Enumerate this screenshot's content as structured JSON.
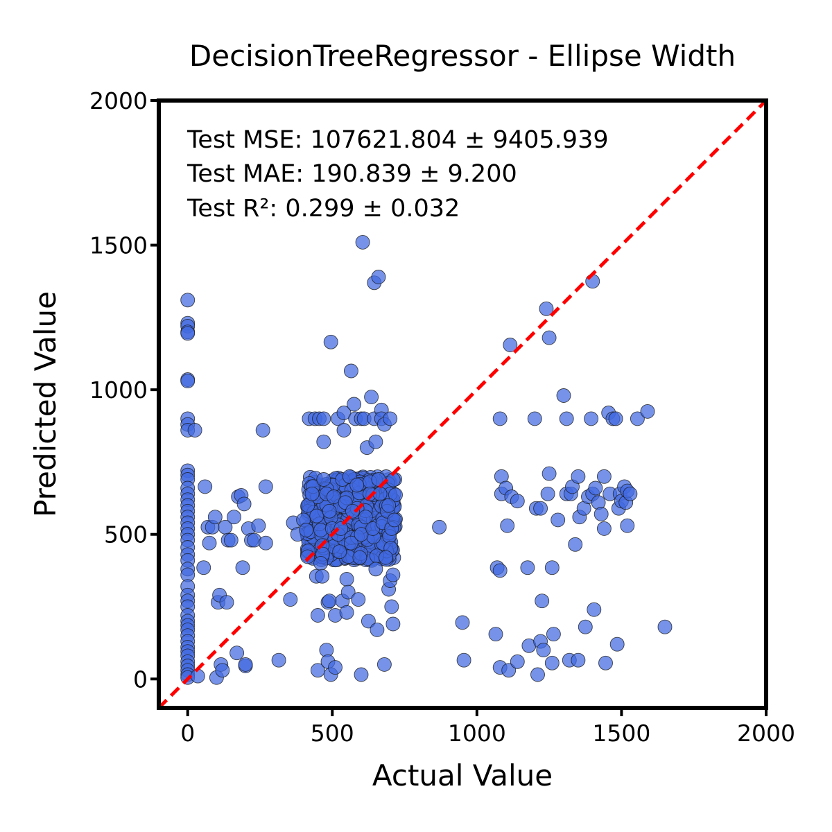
{
  "chart_data": {
    "type": "scatter",
    "title": "DecisionTreeRegressor - Ellipse Width",
    "xlabel": "Actual Value",
    "ylabel": "Predicted Value",
    "xlim": [
      -100,
      2000
    ],
    "ylim": [
      -100,
      2000
    ],
    "xticks": [
      "0",
      "500",
      "1000",
      "1500",
      "2000"
    ],
    "xtick_values": [
      0,
      500,
      1000,
      1500,
      2000
    ],
    "yticks": [
      "0",
      "500",
      "1000",
      "1500",
      "2000"
    ],
    "ytick_values": [
      0,
      500,
      1000,
      1500,
      2000
    ],
    "grid": false,
    "metrics": [
      "Test MSE: 107621.804 ± 9405.939",
      "Test MAE: 190.839 ± 9.200",
      "Test R²: 0.299 ± 0.032"
    ],
    "reference_line": {
      "style": "dashed",
      "color": "#ff0000",
      "from": [
        -100,
        -100
      ],
      "to": [
        2000,
        2000
      ]
    },
    "point_color": "#4169e1",
    "points": [
      [
        0,
        1310
      ],
      [
        0,
        1230
      ],
      [
        0,
        1220
      ],
      [
        0,
        1200
      ],
      [
        0,
        1195
      ],
      [
        0,
        1035
      ],
      [
        0,
        1030
      ],
      [
        0,
        900
      ],
      [
        0,
        880
      ],
      [
        0,
        860
      ],
      [
        0,
        720
      ],
      [
        0,
        705
      ],
      [
        0,
        690
      ],
      [
        0,
        660
      ],
      [
        0,
        640
      ],
      [
        0,
        620
      ],
      [
        0,
        600
      ],
      [
        0,
        580
      ],
      [
        0,
        560
      ],
      [
        0,
        540
      ],
      [
        0,
        520
      ],
      [
        0,
        500
      ],
      [
        0,
        480
      ],
      [
        0,
        455
      ],
      [
        0,
        430
      ],
      [
        0,
        410
      ],
      [
        0,
        380
      ],
      [
        0,
        360
      ],
      [
        0,
        320
      ],
      [
        0,
        290
      ],
      [
        0,
        270
      ],
      [
        0,
        250
      ],
      [
        0,
        220
      ],
      [
        0,
        200
      ],
      [
        0,
        185
      ],
      [
        0,
        170
      ],
      [
        0,
        150
      ],
      [
        0,
        130
      ],
      [
        0,
        110
      ],
      [
        0,
        95
      ],
      [
        0,
        80
      ],
      [
        0,
        60
      ],
      [
        0,
        45
      ],
      [
        0,
        30
      ],
      [
        0,
        15
      ],
      [
        0,
        5
      ],
      [
        25,
        860
      ],
      [
        35,
        10
      ],
      [
        55,
        385
      ],
      [
        60,
        665
      ],
      [
        70,
        525
      ],
      [
        75,
        470
      ],
      [
        85,
        525
      ],
      [
        95,
        560
      ],
      [
        100,
        5
      ],
      [
        105,
        265
      ],
      [
        110,
        290
      ],
      [
        115,
        50
      ],
      [
        120,
        30
      ],
      [
        130,
        525
      ],
      [
        135,
        265
      ],
      [
        140,
        480
      ],
      [
        150,
        480
      ],
      [
        160,
        560
      ],
      [
        170,
        90
      ],
      [
        175,
        630
      ],
      [
        185,
        635
      ],
      [
        190,
        385
      ],
      [
        195,
        605
      ],
      [
        200,
        45
      ],
      [
        200,
        50
      ],
      [
        210,
        520
      ],
      [
        220,
        480
      ],
      [
        230,
        480
      ],
      [
        245,
        530
      ],
      [
        260,
        860
      ],
      [
        270,
        470
      ],
      [
        270,
        665
      ],
      [
        315,
        65
      ],
      [
        355,
        275
      ],
      [
        365,
        540
      ],
      [
        380,
        500
      ],
      [
        400,
        550
      ],
      [
        410,
        515
      ],
      [
        415,
        600
      ],
      [
        420,
        900
      ],
      [
        430,
        640
      ],
      [
        440,
        900
      ],
      [
        445,
        355
      ],
      [
        450,
        220
      ],
      [
        450,
        30
      ],
      [
        455,
        900
      ],
      [
        460,
        515
      ],
      [
        460,
        400
      ],
      [
        465,
        355
      ],
      [
        470,
        900
      ],
      [
        470,
        820
      ],
      [
        470,
        690
      ],
      [
        480,
        100
      ],
      [
        480,
        640
      ],
      [
        485,
        265
      ],
      [
        485,
        60
      ],
      [
        490,
        580
      ],
      [
        490,
        270
      ],
      [
        495,
        1165
      ],
      [
        495,
        15
      ],
      [
        500,
        520
      ],
      [
        505,
        630
      ],
      [
        510,
        40
      ],
      [
        510,
        220
      ],
      [
        520,
        900
      ],
      [
        520,
        500
      ],
      [
        525,
        440
      ],
      [
        530,
        520
      ],
      [
        535,
        690
      ],
      [
        535,
        270
      ],
      [
        540,
        860
      ],
      [
        540,
        920
      ],
      [
        545,
        610
      ],
      [
        550,
        345
      ],
      [
        550,
        230
      ],
      [
        555,
        300
      ],
      [
        560,
        700
      ],
      [
        565,
        1065
      ],
      [
        565,
        470
      ],
      [
        570,
        580
      ],
      [
        575,
        950
      ],
      [
        580,
        900
      ],
      [
        585,
        670
      ],
      [
        590,
        275
      ],
      [
        595,
        420
      ],
      [
        600,
        500
      ],
      [
        600,
        900
      ],
      [
        600,
        15
      ],
      [
        605,
        1510
      ],
      [
        610,
        900
      ],
      [
        615,
        560
      ],
      [
        620,
        800
      ],
      [
        625,
        200
      ],
      [
        630,
        640
      ],
      [
        635,
        975
      ],
      [
        640,
        520
      ],
      [
        645,
        1370
      ],
      [
        645,
        900
      ],
      [
        650,
        820
      ],
      [
        650,
        380
      ],
      [
        655,
        170
      ],
      [
        660,
        690
      ],
      [
        660,
        1390
      ],
      [
        665,
        640
      ],
      [
        670,
        930
      ],
      [
        670,
        900
      ],
      [
        675,
        540
      ],
      [
        680,
        880
      ],
      [
        680,
        50
      ],
      [
        685,
        420
      ],
      [
        690,
        580
      ],
      [
        695,
        600
      ],
      [
        695,
        310
      ],
      [
        700,
        340
      ],
      [
        700,
        900
      ],
      [
        705,
        520
      ],
      [
        705,
        250
      ],
      [
        710,
        360
      ],
      [
        710,
        190
      ],
      [
        715,
        550
      ],
      [
        870,
        525
      ],
      [
        950,
        195
      ],
      [
        955,
        65
      ],
      [
        1065,
        155
      ],
      [
        1070,
        385
      ],
      [
        1080,
        900
      ],
      [
        1080,
        375
      ],
      [
        1080,
        40
      ],
      [
        1085,
        640
      ],
      [
        1085,
        700
      ],
      [
        1100,
        660
      ],
      [
        1105,
        530
      ],
      [
        1110,
        30
      ],
      [
        1115,
        1155
      ],
      [
        1120,
        630
      ],
      [
        1140,
        60
      ],
      [
        1140,
        615
      ],
      [
        1175,
        385
      ],
      [
        1180,
        115
      ],
      [
        1200,
        900
      ],
      [
        1205,
        590
      ],
      [
        1210,
        15
      ],
      [
        1220,
        130
      ],
      [
        1220,
        590
      ],
      [
        1225,
        270
      ],
      [
        1230,
        100
      ],
      [
        1240,
        1280
      ],
      [
        1245,
        640
      ],
      [
        1250,
        1180
      ],
      [
        1250,
        710
      ],
      [
        1260,
        385
      ],
      [
        1260,
        55
      ],
      [
        1265,
        155
      ],
      [
        1280,
        550
      ],
      [
        1300,
        980
      ],
      [
        1310,
        640
      ],
      [
        1310,
        900
      ],
      [
        1320,
        65
      ],
      [
        1325,
        640
      ],
      [
        1330,
        665
      ],
      [
        1340,
        465
      ],
      [
        1350,
        700
      ],
      [
        1350,
        65
      ],
      [
        1355,
        560
      ],
      [
        1370,
        590
      ],
      [
        1375,
        180
      ],
      [
        1385,
        630
      ],
      [
        1395,
        900
      ],
      [
        1400,
        640
      ],
      [
        1400,
        1375
      ],
      [
        1405,
        240
      ],
      [
        1410,
        660
      ],
      [
        1420,
        610
      ],
      [
        1430,
        570
      ],
      [
        1440,
        520
      ],
      [
        1440,
        700
      ],
      [
        1445,
        55
      ],
      [
        1455,
        920
      ],
      [
        1460,
        640
      ],
      [
        1470,
        900
      ],
      [
        1480,
        900
      ],
      [
        1485,
        120
      ],
      [
        1490,
        590
      ],
      [
        1495,
        640
      ],
      [
        1500,
        615
      ],
      [
        1510,
        665
      ],
      [
        1515,
        610
      ],
      [
        1520,
        530
      ],
      [
        1520,
        650
      ],
      [
        1530,
        640
      ],
      [
        1555,
        900
      ],
      [
        1590,
        925
      ],
      [
        1650,
        180
      ]
    ],
    "cluster": {
      "x_range": [
        410,
        720
      ],
      "y_range": [
        410,
        700
      ],
      "count": 460
    }
  }
}
